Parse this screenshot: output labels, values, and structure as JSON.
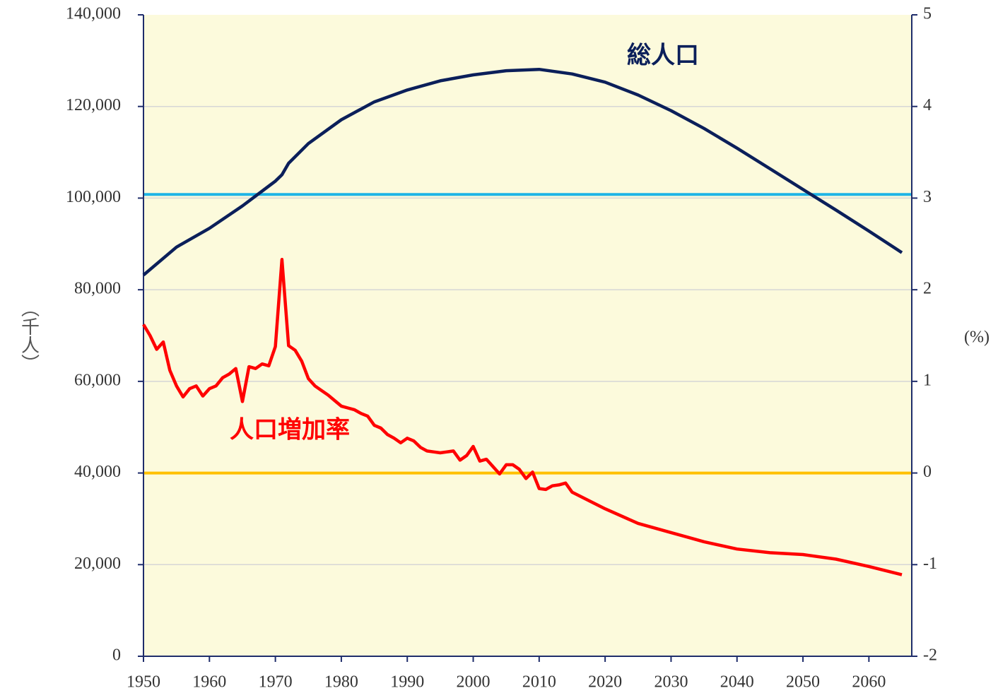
{
  "chart_data": {
    "type": "line",
    "y_label": "（千人）",
    "y2_label": "(%)",
    "xlim": [
      1950,
      2066.5
    ],
    "xticks": [
      1950,
      1960,
      1970,
      1980,
      1990,
      2000,
      2010,
      2020,
      2030,
      2040,
      2050,
      2060
    ],
    "ylim": [
      0,
      140000
    ],
    "yticks": [
      0,
      {
        "value": 20000,
        "label": "20,000"
      },
      {
        "value": 40000,
        "label": "40,000"
      },
      {
        "value": 60000,
        "label": "60,000"
      },
      {
        "value": 80000,
        "label": "80,000"
      },
      {
        "value": 100000,
        "label": "100,000"
      },
      {
        "value": 120000,
        "label": "120,000"
      },
      {
        "value": 140000,
        "label": "140,000"
      }
    ],
    "y2lim": [
      -2,
      5
    ],
    "y2ticks": [
      -2,
      -1,
      0,
      1,
      2,
      3,
      4,
      5
    ],
    "grid": true,
    "background": "#fcfadc",
    "reference_lines": [
      {
        "axis": "y2",
        "value": 3.04,
        "color": "#1eb4e6"
      },
      {
        "axis": "y2",
        "value": 0,
        "color": "#ffc000"
      }
    ],
    "series": [
      {
        "name": "総人口",
        "color": "#0b1f5a",
        "x": [
          1950,
          1955,
          1960,
          1965,
          1970,
          1971,
          1972,
          1975,
          1980,
          1985,
          1990,
          1995,
          2000,
          2005,
          2010,
          2015,
          2020,
          2025,
          2030,
          2035,
          2040,
          2045,
          2050,
          2055,
          2060,
          2065
        ],
        "values": [
          83200,
          89300,
          93400,
          98300,
          103700,
          105100,
          107600,
          111900,
          117100,
          121000,
          123600,
          125600,
          126900,
          127800,
          128100,
          127100,
          125300,
          122500,
          119100,
          115200,
          110900,
          106400,
          101900,
          97400,
          92800,
          88100
        ]
      },
      {
        "name": "人口増加率",
        "color": "#ff0000",
        "axis": "y2",
        "x": [
          1950,
          1951,
          1952,
          1953,
          1954,
          1955,
          1956,
          1957,
          1958,
          1959,
          1960,
          1961,
          1962,
          1963,
          1964,
          1965,
          1966,
          1967,
          1968,
          1969,
          1970,
          1971,
          1972,
          1973,
          1974,
          1975,
          1976,
          1977,
          1978,
          1979,
          1980,
          1981,
          1982,
          1983,
          1984,
          1985,
          1986,
          1987,
          1988,
          1989,
          1990,
          1991,
          1992,
          1993,
          1994,
          1995,
          1996,
          1997,
          1998,
          1999,
          2000,
          2001,
          2002,
          2003,
          2004,
          2005,
          2006,
          2007,
          2008,
          2009,
          2010,
          2011,
          2012,
          2013,
          2014,
          2015,
          2020,
          2025,
          2030,
          2035,
          2040,
          2045,
          2050,
          2055,
          2060,
          2065
        ],
        "values": [
          1.62,
          1.5,
          1.35,
          1.43,
          1.12,
          0.95,
          0.83,
          0.92,
          0.95,
          0.84,
          0.92,
          0.95,
          1.04,
          1.08,
          1.14,
          0.78,
          1.16,
          1.14,
          1.19,
          1.17,
          1.38,
          2.33,
          1.39,
          1.34,
          1.22,
          1.03,
          0.95,
          0.9,
          0.85,
          0.79,
          0.73,
          0.71,
          0.69,
          0.65,
          0.62,
          0.52,
          0.49,
          0.42,
          0.38,
          0.33,
          0.38,
          0.35,
          0.28,
          0.24,
          0.23,
          0.22,
          0.23,
          0.24,
          0.14,
          0.19,
          0.29,
          0.13,
          0.15,
          0.07,
          -0.01,
          0.09,
          0.09,
          0.04,
          -0.06,
          0.01,
          -0.17,
          -0.18,
          -0.14,
          -0.13,
          -0.11,
          -0.21,
          -0.39,
          -0.55,
          -0.65,
          -0.75,
          -0.83,
          -0.87,
          -0.89,
          -0.94,
          -1.02,
          -1.11
        ]
      }
    ]
  }
}
